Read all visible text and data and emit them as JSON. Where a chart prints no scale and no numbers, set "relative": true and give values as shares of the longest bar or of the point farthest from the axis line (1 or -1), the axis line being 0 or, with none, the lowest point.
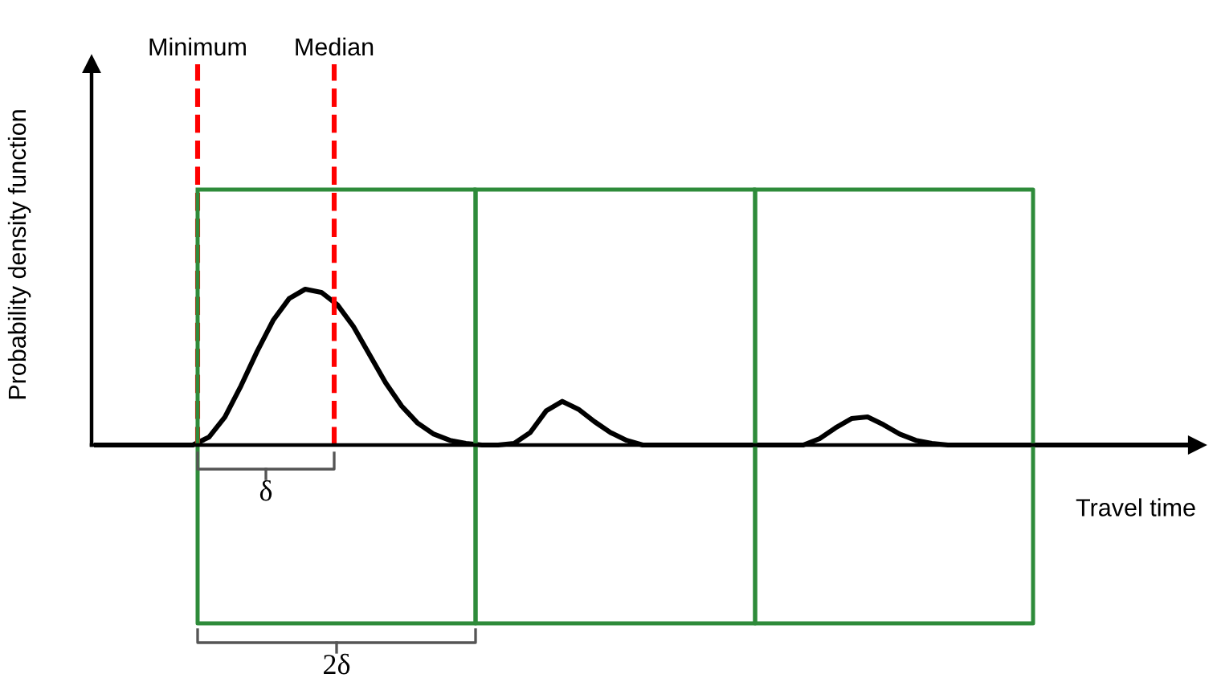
{
  "chart_data": {
    "type": "line",
    "relative": true,
    "xlabel": "Travel time",
    "ylabel": "Probability density function",
    "categories": [
      null,
      null,
      null,
      null,
      null,
      null,
      null,
      null,
      null,
      null,
      null,
      null,
      null,
      null,
      null,
      null,
      null,
      null,
      null,
      null,
      null,
      null,
      null,
      null,
      null,
      null,
      null,
      null,
      null,
      null,
      null,
      null,
      null,
      null,
      null,
      null,
      null,
      null,
      null,
      null,
      null,
      null,
      null,
      null,
      null,
      null,
      null,
      null,
      null,
      null,
      null,
      null,
      null,
      null,
      null,
      null,
      null,
      null,
      null,
      null,
      null,
      null,
      null,
      null,
      null,
      null,
      null,
      null,
      null
    ],
    "series": [
      {
        "color": "#000000",
        "values": [
          0,
          0,
          0,
          0,
          0,
          0,
          0,
          0.05,
          0.18,
          0.38,
          0.6,
          0.8,
          0.94,
          1.0,
          0.98,
          0.9,
          0.76,
          0.58,
          0.4,
          0.25,
          0.14,
          0.07,
          0.03,
          0.01,
          0,
          0,
          0.01,
          0.08,
          0.22,
          0.28,
          0.23,
          0.15,
          0.08,
          0.03,
          0,
          0,
          0,
          0,
          0,
          0,
          0,
          0,
          0,
          0,
          0,
          0.04,
          0.11,
          0.17,
          0.18,
          0.13,
          0.07,
          0.03,
          0.01,
          0,
          0,
          0,
          0,
          0,
          0,
          0,
          0,
          0,
          0,
          0,
          0,
          0,
          0,
          0,
          0
        ]
      }
    ],
    "annotations": [
      "Minimum",
      "Median",
      "δ",
      "2δ"
    ],
    "grid": false,
    "marker": "none",
    "line_style": "solid"
  }
}
